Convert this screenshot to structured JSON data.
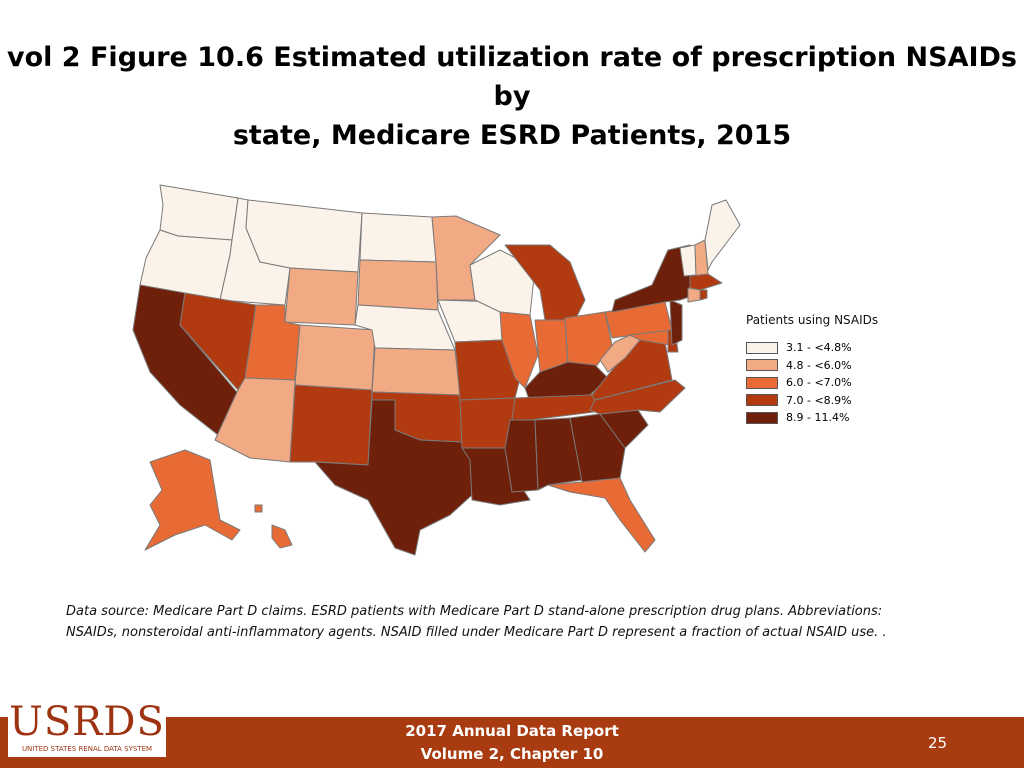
{
  "title_line1": "vol 2 Figure 10.6 Estimated utilization rate of prescription NSAIDs by",
  "title_line2": "state, Medicare ESRD Patients, 2015",
  "colors": {
    "c1": "#fbf2ea",
    "c2": "#f2aa85",
    "c3": "#e86a34",
    "c4": "#b23a10",
    "c5": "#6e200a",
    "footer_bg": "#a83c10",
    "logo": "#9e3312"
  },
  "legend": {
    "title": "Patients using NSAIDs",
    "items": [
      {
        "label": "3.1 - <4.8%",
        "color_key": "c1"
      },
      {
        "label": "4.8 - <6.0%",
        "color_key": "c2"
      },
      {
        "label": "6.0 - <7.0%",
        "color_key": "c3"
      },
      {
        "label": "7.0 - <8.9%",
        "color_key": "c4"
      },
      {
        "label": "8.9 - 11.4%",
        "color_key": "c5"
      }
    ]
  },
  "states": {
    "WA": "c1",
    "OR": "c1",
    "ID": "c1",
    "MT": "c1",
    "ND": "c1",
    "NE": "c1",
    "IA": "c1",
    "WI": "c1",
    "VT": "c1",
    "ME": "c1",
    "WY": "c2",
    "SD": "c2",
    "CO": "c2",
    "KS": "c2",
    "MN": "c2",
    "AZ": "c2",
    "WV": "c2",
    "NH": "c2",
    "CT": "c2",
    "UT": "c3",
    "IL": "c3",
    "IN": "c3",
    "OH": "c3",
    "PA": "c3",
    "FL": "c3",
    "AK": "c3",
    "HI": "c3",
    "MD": "c3",
    "NV": "c4",
    "NM": "c4",
    "OK": "c4",
    "MO": "c4",
    "AR": "c4",
    "MI": "c4",
    "VA": "c4",
    "NC": "c4",
    "TN": "c4",
    "DE": "c4",
    "MA": "c4",
    "RI": "c4",
    "CA": "c5",
    "TX": "c5",
    "LA": "c5",
    "MS": "c5",
    "AL": "c5",
    "GA": "c5",
    "SC": "c5",
    "KY": "c5",
    "NY": "c5",
    "NJ": "c5"
  },
  "footnote_line1": "Data source: Medicare Part D claims. ESRD patients with Medicare Part D stand-alone prescription drug plans. Abbreviations:",
  "footnote_line2": "NSAIDs, nonsteroidal anti-inflammatory agents. NSAID filled under Medicare Part D represent a fraction of actual NSAID use. .",
  "footer": {
    "logo_text": "USRDS",
    "logo_subtext": "UNITED STATES RENAL DATA SYSTEM",
    "report_line1": "2017 Annual Data Report",
    "report_line2": "Volume 2, Chapter 10",
    "page_number": "25"
  }
}
